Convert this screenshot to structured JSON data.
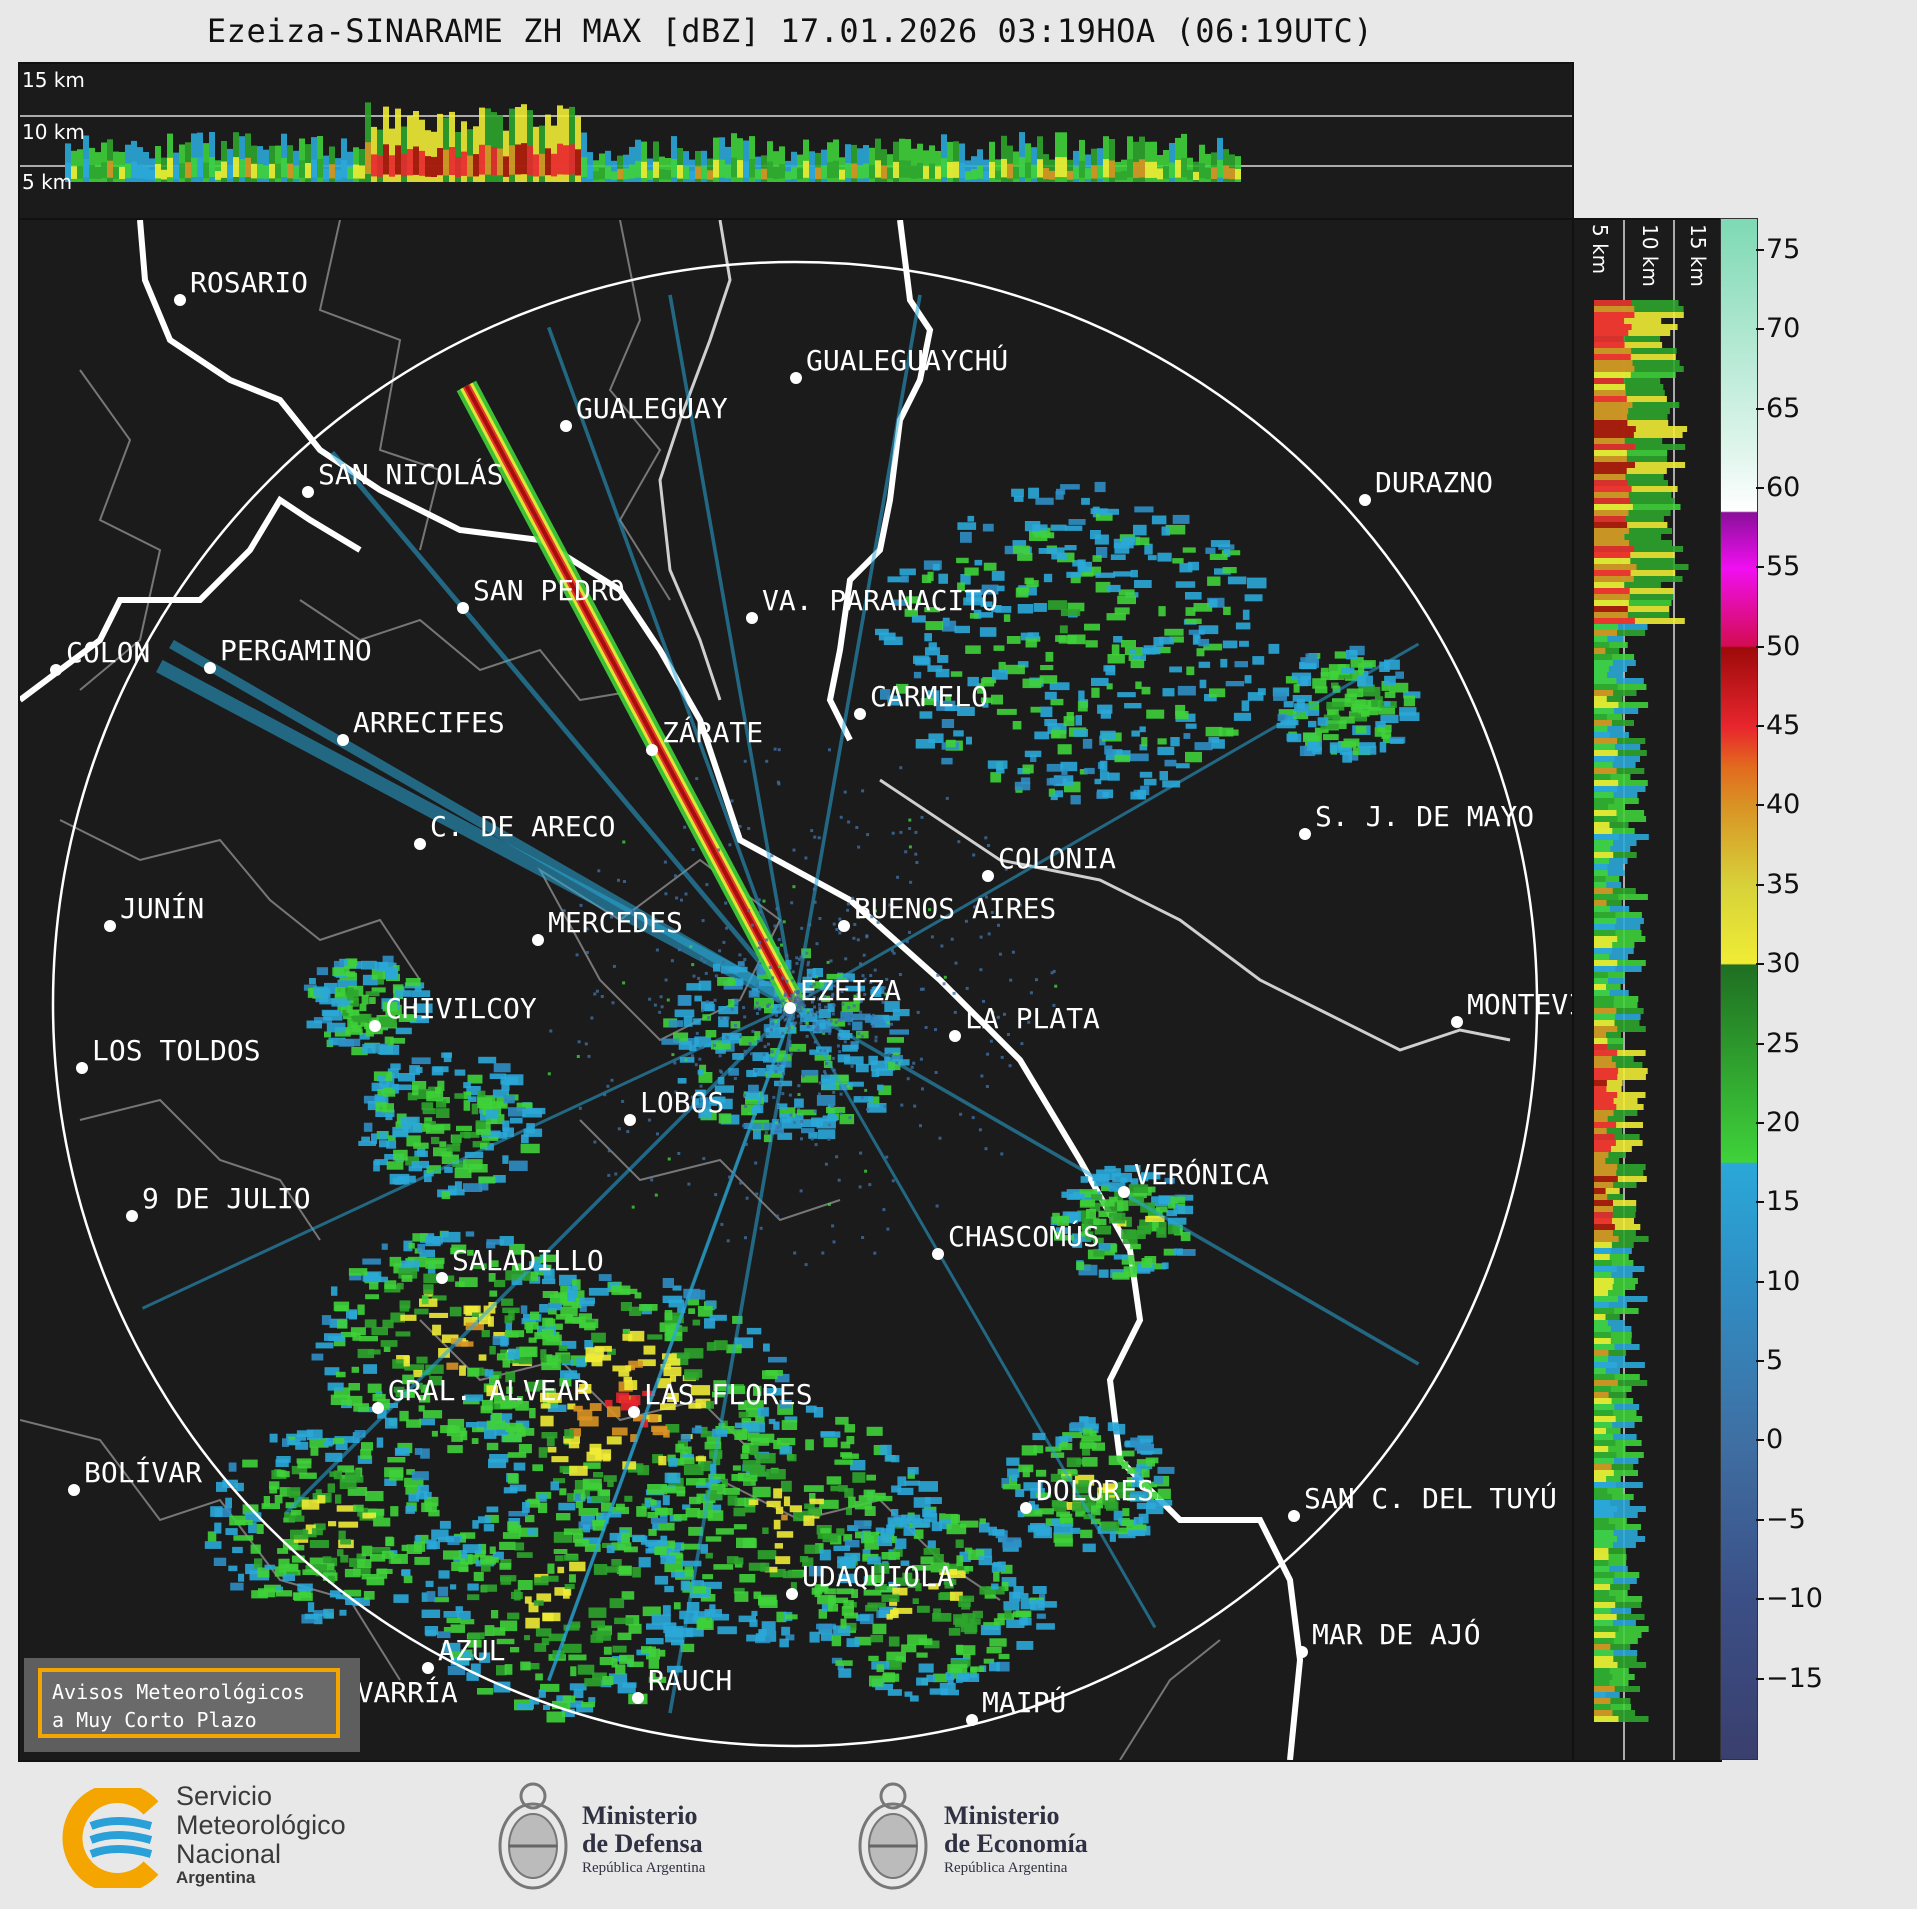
{
  "title": "Ezeiza-SINARAME ZH MAX [dBZ] 17.01.2026 03:19HOA (06:19UTC)",
  "altitude_labels": [
    "15 km",
    "10 km",
    "5 km"
  ],
  "side_altitude_labels": [
    "5 km",
    "10 km",
    "15 km"
  ],
  "colorbar": {
    "unit": "dBZ",
    "ticks": [
      "75",
      "70",
      "65",
      "60",
      "55",
      "50",
      "45",
      "40",
      "35",
      "30",
      "25",
      "20",
      "15",
      "10",
      "5",
      "0",
      "−5",
      "−10",
      "−15"
    ],
    "range": [
      -20,
      77
    ],
    "stops": [
      {
        "v": -20,
        "c": "#3a3f6e"
      },
      {
        "v": -10,
        "c": "#3b4f86"
      },
      {
        "v": 0,
        "c": "#3f6fa3"
      },
      {
        "v": 10,
        "c": "#2f8ec4"
      },
      {
        "v": 17.5,
        "c": "#2aa8d8"
      },
      {
        "v": 17.6,
        "c": "#3fd23a"
      },
      {
        "v": 30,
        "c": "#1f6f22"
      },
      {
        "v": 30.1,
        "c": "#f0ec35"
      },
      {
        "v": 35,
        "c": "#d7d23a"
      },
      {
        "v": 40,
        "c": "#d99324"
      },
      {
        "v": 42.5,
        "c": "#e26a1e"
      },
      {
        "v": 45,
        "c": "#e8262e"
      },
      {
        "v": 50,
        "c": "#9d0a0a"
      },
      {
        "v": 50.1,
        "c": "#d40c52"
      },
      {
        "v": 55,
        "c": "#f00ff0"
      },
      {
        "v": 58.5,
        "c": "#8a0f9a"
      },
      {
        "v": 58.6,
        "c": "#ffffff"
      },
      {
        "v": 62,
        "c": "#e2f6ee"
      },
      {
        "v": 77,
        "c": "#7ed9b4"
      }
    ]
  },
  "cities": [
    {
      "name": "ROSARIO"
    },
    {
      "name": "GUALEGUAYCHÚ"
    },
    {
      "name": "GUALEGUAY"
    },
    {
      "name": "SAN NICOLÁS"
    },
    {
      "name": "DURAZNO"
    },
    {
      "name": "SAN PEDRO"
    },
    {
      "name": "VA. PARANACITO"
    },
    {
      "name": "COLON"
    },
    {
      "name": "PERGAMINO"
    },
    {
      "name": "CARMELO"
    },
    {
      "name": "ARRECIFES"
    },
    {
      "name": "ZÁRATE"
    },
    {
      "name": "C. DE ARECO"
    },
    {
      "name": "S. J. DE MAYO"
    },
    {
      "name": "COLONIA"
    },
    {
      "name": "JUNÍN"
    },
    {
      "name": "MERCEDES"
    },
    {
      "name": "BUENOS AIRES"
    },
    {
      "name": "EZEIZA"
    },
    {
      "name": "MONTEVIDEO"
    },
    {
      "name": "CHIVILCOY"
    },
    {
      "name": "LA PLATA"
    },
    {
      "name": "LOS TOLDOS"
    },
    {
      "name": "LOBOS"
    },
    {
      "name": "VERÓNICA"
    },
    {
      "name": "9 DE JULIO"
    },
    {
      "name": "CHASCOMÚS"
    },
    {
      "name": "SALADILLO"
    },
    {
      "name": "GRAL. ALVEAR"
    },
    {
      "name": "LAS FLORES"
    },
    {
      "name": "BOLÍVAR"
    },
    {
      "name": "DOLORES"
    },
    {
      "name": "SAN C. DEL TUYÚ"
    },
    {
      "name": "UDAQUIOLA"
    },
    {
      "name": "MAR DE AJÓ"
    },
    {
      "name": "AZUL"
    },
    {
      "name": "RAUCH"
    },
    {
      "name": "OLAVARRÍA"
    },
    {
      "name": "MAIPÚ"
    }
  ],
  "warning_box": {
    "line1": "Avisos Meteorológicos",
    "line2": "a Muy Corto Plazo"
  },
  "logos": {
    "smn": {
      "line1": "Servicio",
      "line2": "Meteorológico",
      "line3": "Nacional",
      "line4": "Argentina"
    },
    "defensa": {
      "line1": "Ministerio",
      "line2": "de Defensa",
      "line3": "República Argentina"
    },
    "economia": {
      "line1": "Ministerio",
      "line2": "de Economía",
      "line3": "República Argentina"
    }
  },
  "colors": {
    "background": "#1b1b1b",
    "range_ring": "#ffffff",
    "coast": "#ffffff",
    "borders": "#7a7a7a",
    "warning_border": "#f5a500"
  }
}
